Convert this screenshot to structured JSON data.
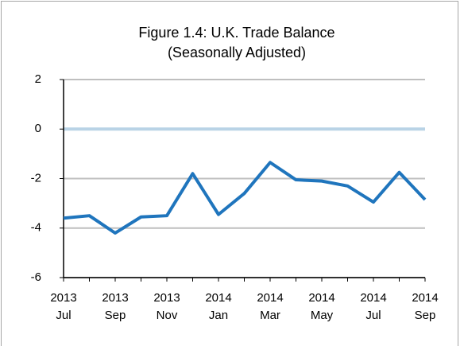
{
  "chart_data": {
    "type": "line",
    "title": [
      "Figure 1.4: U.K. Trade Balance",
      "(Seasonally Adjusted)"
    ],
    "categories": [
      "2013 Jul",
      null,
      "2013 Sep",
      null,
      "2013 Nov",
      null,
      "2014 Jan",
      null,
      "2014 Mar",
      null,
      "2014 May",
      null,
      "2014 Jul",
      null,
      "2014 Sep"
    ],
    "series": [
      {
        "color": "#1f75bd",
        "values": [
          -3.6,
          -3.5,
          -4.2,
          -3.55,
          -3.5,
          -1.8,
          -3.45,
          -2.6,
          -1.35,
          -2.05,
          -2.1,
          -2.3,
          -2.95,
          -1.75,
          -2.85
        ]
      }
    ],
    "ylim": [
      -6,
      2
    ],
    "yticks": [
      -6,
      -4,
      -2,
      0,
      2
    ],
    "grid": true,
    "zero_line_color": "#b9d3e6"
  }
}
